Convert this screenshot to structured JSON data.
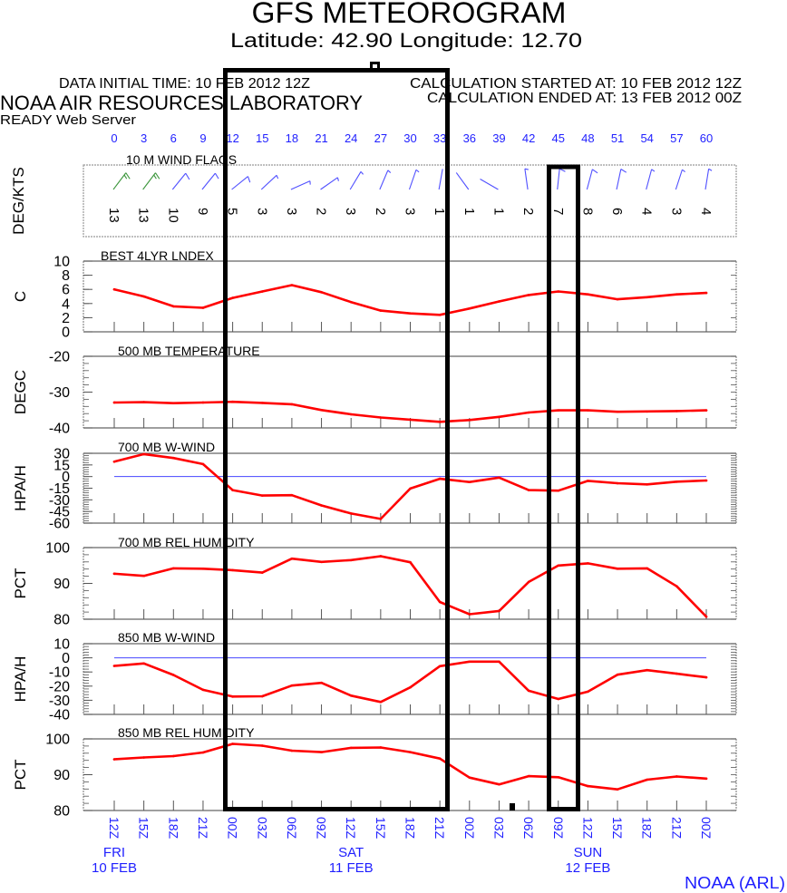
{
  "header": {
    "title": "GFS METEOROGRAM",
    "location": "Latitude: 42.90 Longitude:  12.70",
    "data_initial_time": "DATA INITIAL TIME: 10 FEB 2012 12Z",
    "calc_started": "CALCULATION STARTED AT: 10 FEB 2012 12Z",
    "calc_ended": "CALCULATION ENDED AT: 13 FEB 2012 00Z",
    "organization": "NOAA AIR RESOURCES LABORATORY",
    "server": "READY Web Server"
  },
  "footer": {
    "credit": "NOAA (ARL)"
  },
  "colors": {
    "series_line": "#ff0000",
    "zero_line": "#4646ff",
    "axis_text_blue": "#1f1fff",
    "barb_normal": "#5050ff",
    "barb_strong": "#3c963c",
    "frame": "#666666",
    "highlight_box": "#000000"
  },
  "time_axis": {
    "forecast_hours": [
      0,
      3,
      6,
      9,
      12,
      15,
      18,
      21,
      24,
      27,
      30,
      33,
      36,
      39,
      42,
      45,
      48,
      51,
      54,
      57,
      60
    ],
    "utc_labels": [
      "12Z",
      "15Z",
      "18Z",
      "21Z",
      "00Z",
      "03Z",
      "06Z",
      "09Z",
      "12Z",
      "15Z",
      "18Z",
      "21Z",
      "00Z",
      "03Z",
      "06Z",
      "09Z",
      "12Z",
      "15Z",
      "18Z",
      "21Z",
      "00Z"
    ],
    "days": [
      {
        "day": "FRI",
        "date": "10 FEB",
        "hour": 0
      },
      {
        "day": "SAT",
        "date": "11 FEB",
        "hour": 24
      },
      {
        "day": "SUN",
        "date": "12 FEB",
        "hour": 48
      }
    ]
  },
  "chart_data": [
    {
      "id": "wind-flags",
      "type": "scatter",
      "marker": "wind-barb",
      "title": "10 M  WIND FLAGS",
      "ylabel": "DEG/KTS",
      "x": [
        0,
        3,
        6,
        9,
        12,
        15,
        18,
        21,
        24,
        27,
        30,
        33,
        36,
        39,
        42,
        45,
        48,
        51,
        54,
        57,
        60
      ],
      "speed_kts": [
        13,
        13,
        10,
        9,
        5,
        3,
        3,
        2,
        3,
        2,
        3,
        1,
        1,
        1,
        2,
        7,
        8,
        6,
        4,
        3,
        4
      ],
      "direction_deg": [
        37,
        37,
        39,
        39,
        51,
        47,
        66,
        55,
        31,
        23,
        19,
        10,
        324,
        300,
        352,
        6,
        15,
        12,
        15,
        18,
        9
      ],
      "strong_threshold_kts": 11
    },
    {
      "id": "lifted-index",
      "type": "line",
      "title": "BEST 4LYR LNDEX",
      "ylabel": "C",
      "ylim": [
        0,
        10
      ],
      "yticks": [
        0,
        2,
        4,
        6,
        8,
        10
      ],
      "minor_step": 2,
      "zero_line": false,
      "x": [
        0,
        3,
        6,
        9,
        12,
        15,
        18,
        21,
        24,
        27,
        30,
        33,
        36,
        39,
        42,
        45,
        48,
        51,
        54,
        57,
        60
      ],
      "values": [
        6.0,
        5.0,
        3.6,
        3.4,
        4.8,
        5.7,
        6.6,
        5.6,
        4.2,
        3.0,
        2.6,
        2.4,
        3.3,
        4.3,
        5.2,
        5.7,
        5.3,
        4.6,
        4.9,
        5.3,
        5.5
      ]
    },
    {
      "id": "temp-500mb",
      "type": "line",
      "title": "500 MB  TEMPERATURE",
      "ylabel": "DEGC",
      "ylim": [
        -40,
        -20
      ],
      "yticks": [
        -40,
        -30,
        -20
      ],
      "minor_step": 2,
      "zero_line": false,
      "x": [
        0,
        3,
        6,
        9,
        12,
        15,
        18,
        21,
        24,
        27,
        30,
        33,
        36,
        39,
        42,
        45,
        48,
        51,
        54,
        57,
        60
      ],
      "values": [
        -32.9,
        -32.8,
        -33.1,
        -32.9,
        -32.7,
        -33.0,
        -33.4,
        -35.0,
        -36.2,
        -37.1,
        -37.7,
        -38.3,
        -37.8,
        -36.9,
        -35.7,
        -35.1,
        -35.1,
        -35.5,
        -35.4,
        -35.3,
        -35.1
      ]
    },
    {
      "id": "wwind-700mb",
      "type": "line",
      "title": "700 MB  W-WIND",
      "ylabel": "HPA/H",
      "ylim": [
        -60,
        30
      ],
      "yticks": [
        -60,
        -45,
        -30,
        -15,
        0,
        15,
        30
      ],
      "minor_step": 3,
      "zero_line": true,
      "x": [
        0,
        3,
        6,
        9,
        12,
        15,
        18,
        21,
        24,
        27,
        30,
        33,
        36,
        39,
        42,
        45,
        48,
        51,
        54,
        57,
        60
      ],
      "values": [
        19.2,
        28.9,
        23.9,
        16.1,
        -17.5,
        -24.5,
        -24.0,
        -37.2,
        -47.6,
        -54.6,
        -15.5,
        -2.8,
        -7.1,
        -1.3,
        -17.5,
        -18.2,
        -5.5,
        -8.6,
        -10.1,
        -6.6,
        -5.1
      ]
    },
    {
      "id": "rh-700mb",
      "type": "line",
      "title": "700 MB  REL HUMIDITY",
      "ylabel": "PCT",
      "ylim": [
        80,
        100
      ],
      "yticks": [
        80,
        90,
        100
      ],
      "minor_step": 2,
      "zero_line": false,
      "x": [
        0,
        3,
        6,
        9,
        12,
        15,
        18,
        21,
        24,
        27,
        30,
        33,
        36,
        39,
        42,
        45,
        48,
        51,
        54,
        57,
        60
      ],
      "values": [
        92.7,
        92.1,
        94.2,
        94.1,
        93.7,
        93.0,
        96.9,
        96.0,
        96.5,
        97.6,
        95.9,
        84.8,
        81.4,
        82.3,
        90.4,
        95.0,
        95.6,
        94.1,
        94.2,
        89.2,
        80.7
      ]
    },
    {
      "id": "wwind-850mb",
      "type": "line",
      "title": "850 MB  W-WIND",
      "ylabel": "HPA/H",
      "ylim": [
        -40,
        10
      ],
      "yticks": [
        -40,
        -30,
        -20,
        -10,
        0,
        10
      ],
      "minor_step": 2,
      "zero_line": true,
      "x": [
        0,
        3,
        6,
        9,
        12,
        15,
        18,
        21,
        24,
        27,
        30,
        33,
        36,
        39,
        42,
        45,
        48,
        51,
        54,
        57,
        60
      ],
      "values": [
        -5.7,
        -4.0,
        -12.1,
        -22.6,
        -27.4,
        -27.2,
        -19.6,
        -17.7,
        -26.7,
        -31.2,
        -20.9,
        -5.9,
        -2.7,
        -2.7,
        -23.3,
        -29.1,
        -23.9,
        -11.9,
        -8.7,
        -11.2,
        -13.8
      ]
    },
    {
      "id": "rh-850mb",
      "type": "line",
      "title": "850 MB  REL HUMIDITY",
      "ylabel": "PCT",
      "ylim": [
        80,
        100
      ],
      "yticks": [
        80,
        90,
        100
      ],
      "minor_step": 2,
      "zero_line": false,
      "x": [
        0,
        3,
        6,
        9,
        12,
        15,
        18,
        21,
        24,
        27,
        30,
        33,
        36,
        39,
        42,
        45,
        48,
        51,
        54,
        57,
        60
      ],
      "values": [
        94.3,
        94.8,
        95.2,
        96.2,
        98.6,
        98.1,
        96.7,
        96.3,
        97.5,
        97.6,
        96.3,
        94.5,
        89.2,
        87.3,
        89.6,
        89.3,
        86.8,
        85.9,
        88.6,
        89.5,
        88.9
      ]
    }
  ]
}
